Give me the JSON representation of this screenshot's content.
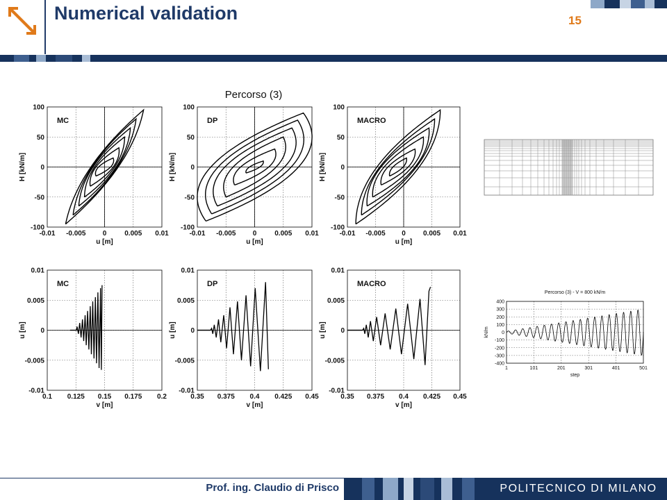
{
  "header": {
    "title": "Numerical validation",
    "page_number": "15"
  },
  "footer": {
    "author": "Prof. ing. Claudio di Prisco",
    "brand": "POLITECNICO DI MILANO"
  },
  "colors": {
    "navy": "#16325c",
    "accent": "#e07a1a"
  },
  "icons": {
    "logo": "arrow-down-right-icon"
  },
  "figure": {
    "title": "Percorso (3)"
  },
  "chart_data": [
    {
      "type": "line",
      "label": "MC",
      "xlabel": "u [m]",
      "ylabel": "H [kN/m]",
      "xlim": [
        -0.01,
        0.01
      ],
      "ylim": [
        -100,
        100
      ],
      "xticks": [
        "-0.01",
        "-0.005",
        "0",
        "0.005",
        "0.01"
      ],
      "yticks": [
        "100",
        "50",
        "0",
        "-50",
        "-100"
      ],
      "grid": "dotted",
      "kind": "loop",
      "center": [
        0,
        0
      ],
      "loops": [
        [
          0.0015,
          15,
          0.7
        ],
        [
          0.0025,
          32,
          0.6
        ],
        [
          0.0035,
          50,
          0.5
        ],
        [
          0.0045,
          65,
          0.45
        ],
        [
          0.0055,
          80,
          0.4
        ],
        [
          0.0068,
          95,
          0.35
        ]
      ]
    },
    {
      "type": "line",
      "label": "DP",
      "xlabel": "u [m]",
      "ylabel": "H [kN/m]",
      "xlim": [
        -0.01,
        0.01
      ],
      "ylim": [
        -100,
        100
      ],
      "xticks": [
        "-0.01",
        "-0.005",
        "0",
        "0.005",
        "0.01"
      ],
      "yticks": [
        "100",
        "50",
        "0",
        "-50",
        "-100"
      ],
      "grid": "dotted",
      "kind": "loop",
      "center": [
        0,
        0
      ],
      "loops": [
        [
          0.0015,
          10,
          0.6
        ],
        [
          0.0035,
          30,
          0.7
        ],
        [
          0.005,
          50,
          0.75
        ],
        [
          0.0065,
          65,
          0.8
        ],
        [
          0.0075,
          78,
          0.85
        ],
        [
          0.0085,
          90,
          0.9
        ]
      ]
    },
    {
      "type": "line",
      "label": "MACRO",
      "xlabel": "u [m]",
      "ylabel": "H [kN/m]",
      "xlim": [
        -0.01,
        0.01
      ],
      "ylim": [
        -100,
        100
      ],
      "xticks": [
        "-0.01",
        "-0.005",
        "0",
        "0.005",
        "0.01"
      ],
      "yticks": [
        "100",
        "50",
        "0",
        "-50",
        "-100"
      ],
      "grid": "dotted",
      "kind": "loop",
      "center": [
        -0.001,
        0
      ],
      "loops": [
        [
          0.0015,
          15,
          0.6
        ],
        [
          0.003,
          30,
          0.6
        ],
        [
          0.0045,
          50,
          0.55
        ],
        [
          0.0055,
          65,
          0.55
        ],
        [
          0.0065,
          80,
          0.5
        ],
        [
          0.0075,
          95,
          0.5
        ]
      ]
    },
    {
      "type": "line",
      "label": "MC",
      "xlabel": "v [m]",
      "ylabel": "u [m]",
      "xlim": [
        0.1,
        0.2
      ],
      "ylim": [
        -0.01,
        0.01
      ],
      "xticks": [
        "0.1",
        "0.125",
        "0.15",
        "0.175",
        "0.2"
      ],
      "yticks": [
        "0.01",
        "0.005",
        "0",
        "-0.005",
        "-0.01"
      ],
      "grid": "dotted",
      "kind": "zigzag",
      "lead": [
        0.12,
        0.1255
      ],
      "x": [
        0.1255,
        0.126,
        0.1272,
        0.1283,
        0.1295,
        0.1307,
        0.1318,
        0.133,
        0.134,
        0.1352,
        0.1363,
        0.1375,
        0.1385,
        0.1397,
        0.1408,
        0.142,
        0.143,
        0.1442,
        0.1452,
        0.1465,
        0.1472,
        0.1478
      ],
      "y": [
        0,
        0.0006,
        -0.0006,
        0.0012,
        -0.0012,
        0.0018,
        -0.0018,
        0.0025,
        -0.0025,
        0.0032,
        -0.0032,
        0.004,
        -0.004,
        0.0048,
        -0.0047,
        0.0055,
        -0.0055,
        0.0063,
        -0.0063,
        0.007,
        -0.0066,
        0.0075
      ]
    },
    {
      "type": "line",
      "label": "DP",
      "xlabel": "v [m]",
      "ylabel": "u [m]",
      "xlim": [
        0.35,
        0.45
      ],
      "ylim": [
        -0.01,
        0.01
      ],
      "xticks": [
        "0.35",
        "0.375",
        "0.4",
        "0.425",
        "0.45"
      ],
      "yticks": [
        "0.01",
        "0.005",
        "0",
        "-0.005",
        "-0.01"
      ],
      "grid": "dotted",
      "kind": "zigzag",
      "lead": [
        0.35,
        0.3615
      ],
      "x": [
        0.3615,
        0.3625,
        0.3635,
        0.3648,
        0.3665,
        0.3685,
        0.3705,
        0.373,
        0.3755,
        0.3785,
        0.3815,
        0.385,
        0.3885,
        0.3925,
        0.3965,
        0.4005,
        0.405,
        0.4095,
        0.412
      ],
      "y": [
        0,
        0.0003,
        -0.0006,
        0.0009,
        -0.0012,
        0.0018,
        -0.002,
        0.0025,
        -0.003,
        0.0038,
        -0.004,
        0.0048,
        -0.005,
        0.0058,
        -0.006,
        0.007,
        -0.0068,
        0.008,
        -0.0065
      ]
    },
    {
      "type": "line",
      "label": "MACRO",
      "xlabel": "v [m]",
      "ylabel": "u [m]",
      "xlim": [
        0.35,
        0.45
      ],
      "ylim": [
        -0.01,
        0.01
      ],
      "xticks": [
        "0.35",
        "0.375",
        "0.4",
        "0.425",
        "0.45"
      ],
      "yticks": [
        "0.01",
        "0.005",
        "0",
        "-0.005",
        "-0.01"
      ],
      "grid": "dotted",
      "kind": "zigzag",
      "lead": [
        0.35,
        0.3635
      ],
      "x": [
        0.3635,
        0.3645,
        0.3655,
        0.3668,
        0.3685,
        0.3705,
        0.373,
        0.376,
        0.3795,
        0.3835,
        0.388,
        0.393,
        0.398,
        0.4035,
        0.409,
        0.4145,
        0.419,
        0.4225,
        0.4238
      ],
      "y": [
        0,
        0.0003,
        -0.0006,
        0.0009,
        -0.0012,
        0.0015,
        -0.0018,
        0.0022,
        -0.0025,
        0.0028,
        -0.0032,
        0.0036,
        -0.004,
        0.0044,
        -0.0048,
        0.0052,
        -0.0058,
        0.0065,
        0.0072
      ]
    },
    {
      "type": "line",
      "title": "Percorso (3) - V = 800 kN/m",
      "xlabel": "step",
      "ylabel": "kN/m",
      "xlim": [
        1,
        501
      ],
      "ylim": [
        -400,
        400
      ],
      "xticks": [
        "1",
        "101",
        "201",
        "301",
        "401",
        "501"
      ],
      "yticks": [
        "400",
        "300",
        "200",
        "100",
        "0",
        "-100",
        "-200",
        "-300",
        "-400"
      ],
      "grid": "dotted",
      "kind": "sine",
      "cycles": 19,
      "amp_start": 12,
      "amp_end": 300
    }
  ]
}
